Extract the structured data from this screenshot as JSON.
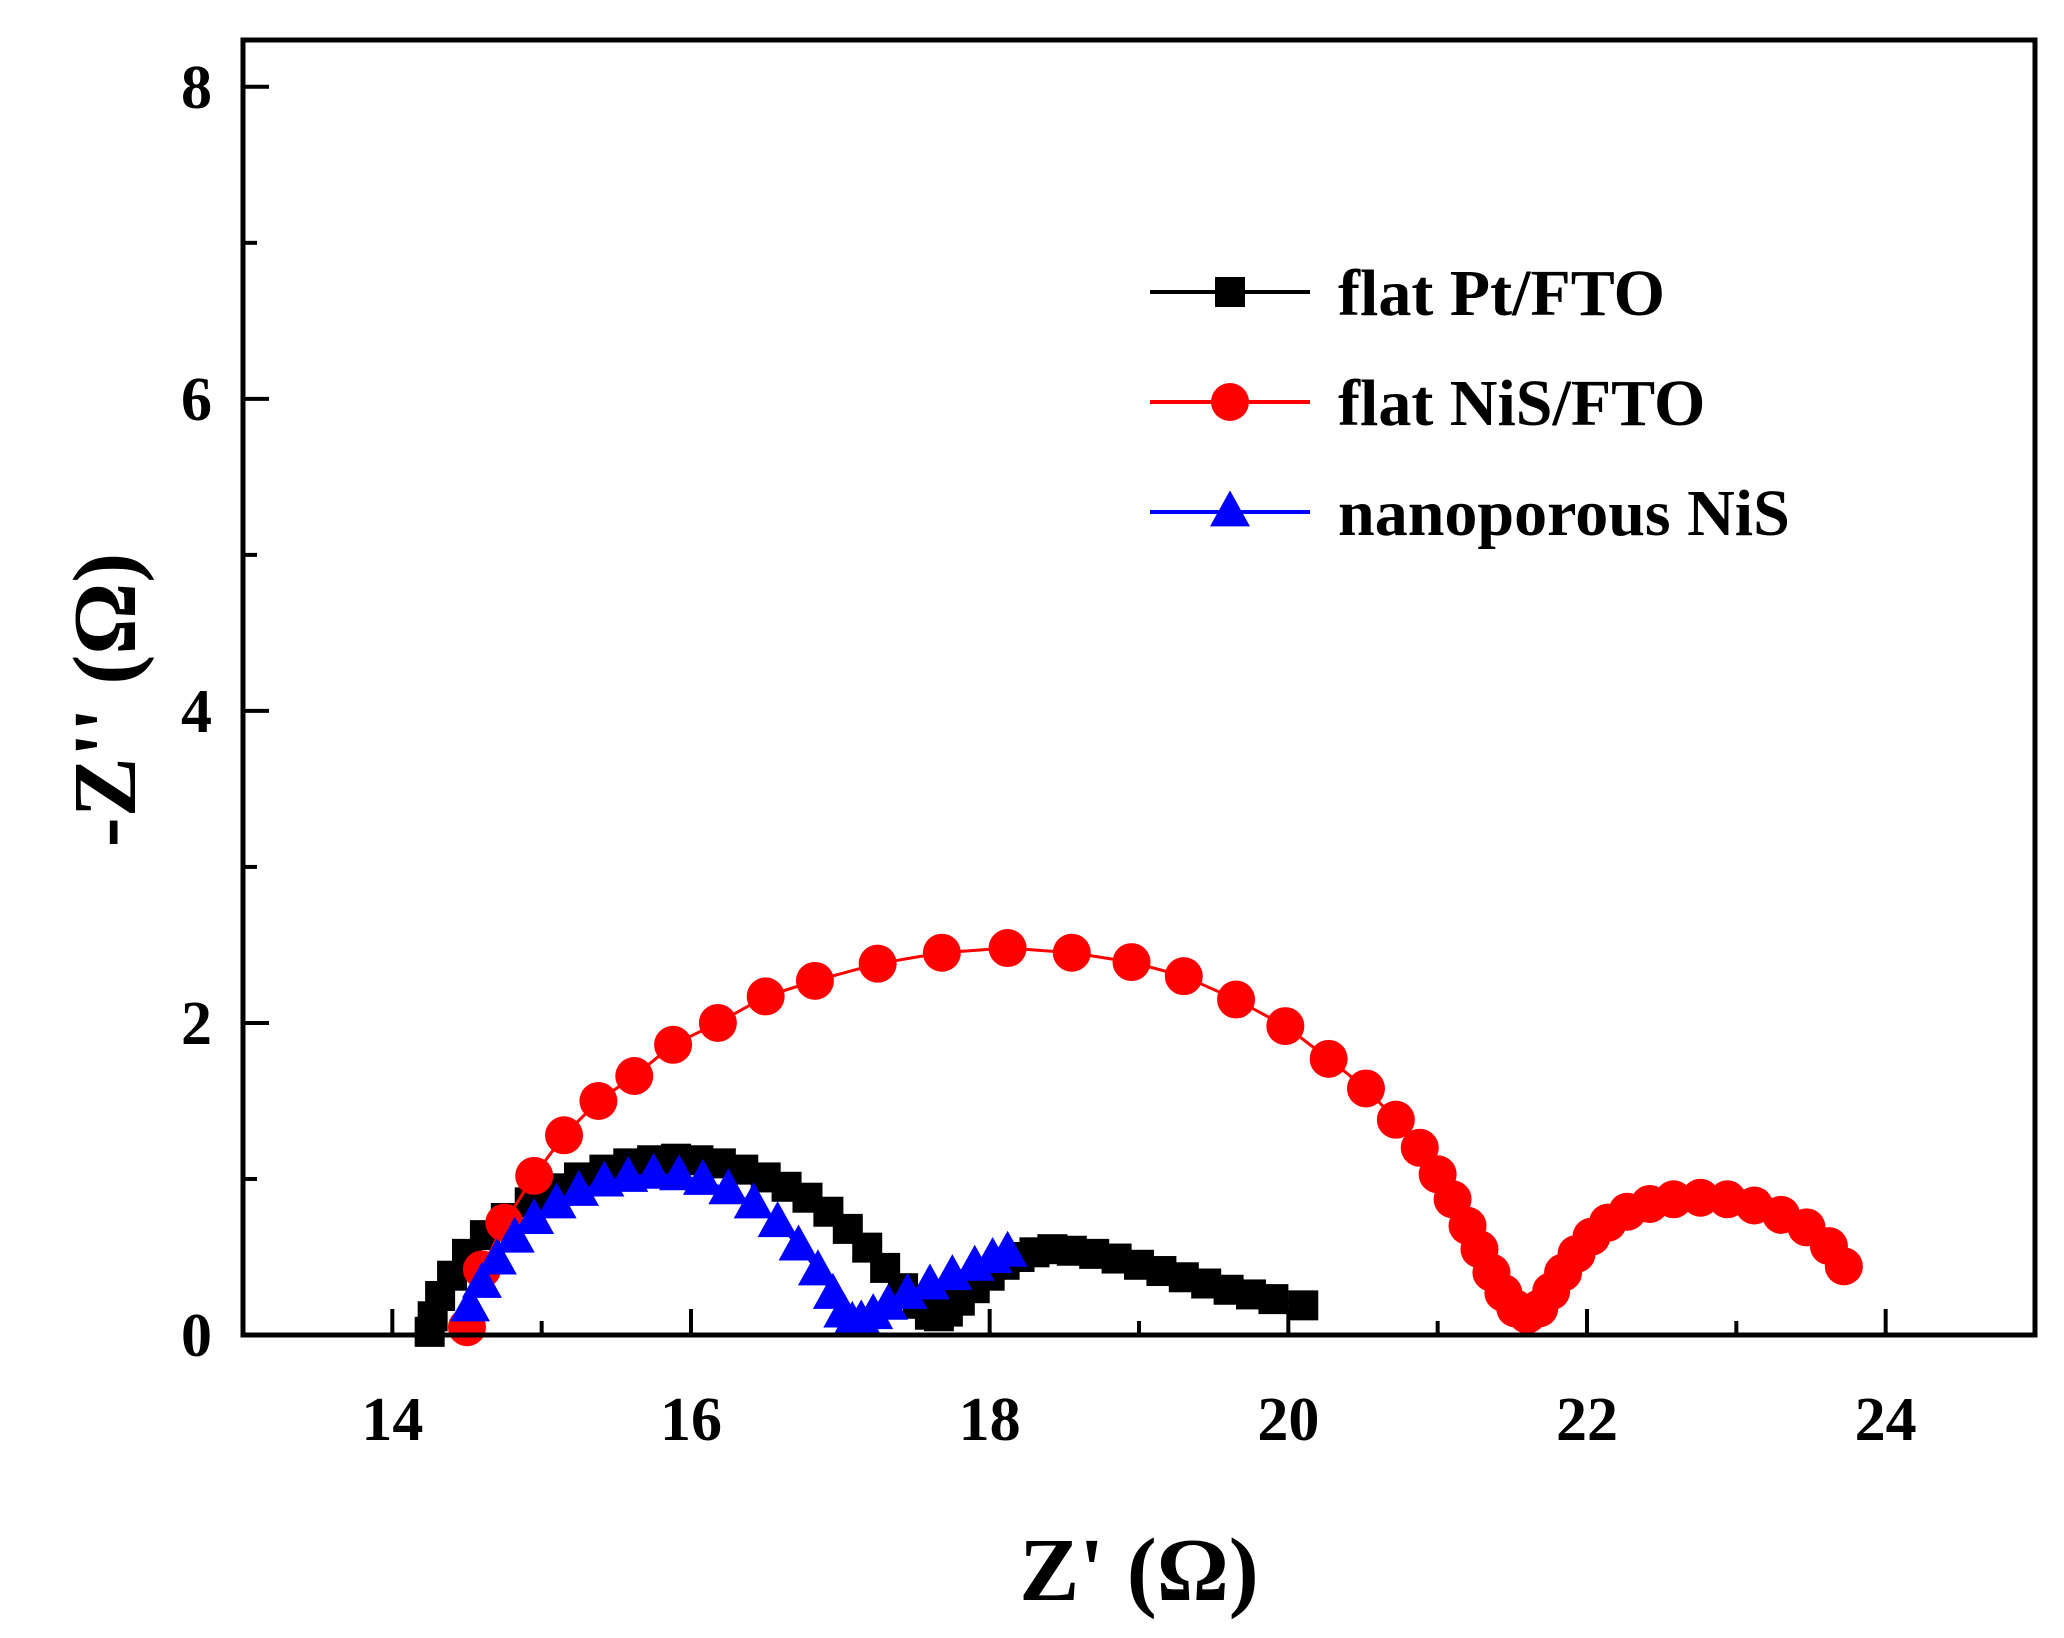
{
  "chart_data": {
    "type": "scatter",
    "title": "",
    "xlabel": "Z' (Ω)",
    "ylabel": "-Z'' (Ω)",
    "xlim": [
      13,
      25
    ],
    "ylim": [
      0,
      8.3
    ],
    "xticks": [
      14,
      16,
      18,
      20,
      22,
      24
    ],
    "yticks": [
      0,
      2,
      4,
      6,
      8
    ],
    "legend_position": "top-right",
    "series": [
      {
        "name": "flat Pt/FTO",
        "color": "#000000",
        "marker": "square",
        "x": [
          14.25,
          14.27,
          14.32,
          14.4,
          14.5,
          14.62,
          14.76,
          14.92,
          15.08,
          15.25,
          15.42,
          15.58,
          15.74,
          15.9,
          16.05,
          16.2,
          16.35,
          16.5,
          16.64,
          16.78,
          16.92,
          17.05,
          17.18,
          17.3,
          17.42,
          17.52,
          17.6,
          17.66,
          17.72,
          17.8,
          17.9,
          18.0,
          18.1,
          18.2,
          18.3,
          18.42,
          18.55,
          18.7,
          18.85,
          19.0,
          19.15,
          19.3,
          19.45,
          19.6,
          19.75,
          19.9,
          20.1
        ],
        "y": [
          0.02,
          0.12,
          0.25,
          0.38,
          0.52,
          0.64,
          0.75,
          0.85,
          0.94,
          1.01,
          1.06,
          1.1,
          1.12,
          1.13,
          1.12,
          1.1,
          1.06,
          1.01,
          0.95,
          0.88,
          0.79,
          0.68,
          0.56,
          0.43,
          0.3,
          0.2,
          0.13,
          0.12,
          0.15,
          0.22,
          0.3,
          0.38,
          0.45,
          0.5,
          0.53,
          0.55,
          0.54,
          0.52,
          0.49,
          0.45,
          0.41,
          0.37,
          0.33,
          0.29,
          0.26,
          0.23,
          0.19
        ]
      },
      {
        "name": "flat NiS/FTO",
        "color": "#ff0000",
        "marker": "circle",
        "x": [
          14.5,
          14.6,
          14.75,
          14.95,
          15.15,
          15.38,
          15.62,
          15.88,
          16.18,
          16.5,
          16.83,
          17.25,
          17.68,
          18.12,
          18.55,
          18.95,
          19.3,
          19.65,
          19.98,
          20.27,
          20.52,
          20.72,
          20.88,
          21.0,
          21.1,
          21.2,
          21.28,
          21.36,
          21.44,
          21.52,
          21.6,
          21.68,
          21.76,
          21.84,
          21.93,
          22.03,
          22.14,
          22.27,
          22.42,
          22.58,
          22.76,
          22.94,
          23.12,
          23.3,
          23.47,
          23.62,
          23.72
        ],
        "y": [
          0.05,
          0.42,
          0.72,
          1.02,
          1.28,
          1.5,
          1.66,
          1.86,
          2.0,
          2.17,
          2.27,
          2.38,
          2.45,
          2.48,
          2.45,
          2.39,
          2.3,
          2.15,
          1.98,
          1.77,
          1.58,
          1.38,
          1.2,
          1.03,
          0.87,
          0.7,
          0.55,
          0.4,
          0.27,
          0.17,
          0.13,
          0.17,
          0.28,
          0.4,
          0.52,
          0.63,
          0.72,
          0.79,
          0.84,
          0.87,
          0.88,
          0.87,
          0.83,
          0.77,
          0.69,
          0.57,
          0.44
        ]
      },
      {
        "name": "nanoporous NiS",
        "color": "#0000ff",
        "marker": "triangle",
        "x": [
          14.52,
          14.6,
          14.7,
          14.82,
          14.95,
          15.1,
          15.25,
          15.42,
          15.58,
          15.75,
          15.92,
          16.08,
          16.25,
          16.42,
          16.58,
          16.72,
          16.85,
          16.95,
          17.02,
          17.08,
          17.14,
          17.22,
          17.32,
          17.45,
          17.6,
          17.75,
          17.9,
          18.02,
          18.12
        ],
        "y": [
          0.18,
          0.33,
          0.48,
          0.62,
          0.74,
          0.84,
          0.92,
          0.98,
          1.01,
          1.03,
          1.02,
          0.99,
          0.93,
          0.84,
          0.72,
          0.57,
          0.41,
          0.26,
          0.14,
          0.08,
          0.09,
          0.13,
          0.19,
          0.26,
          0.32,
          0.38,
          0.44,
          0.49,
          0.53
        ]
      }
    ]
  }
}
